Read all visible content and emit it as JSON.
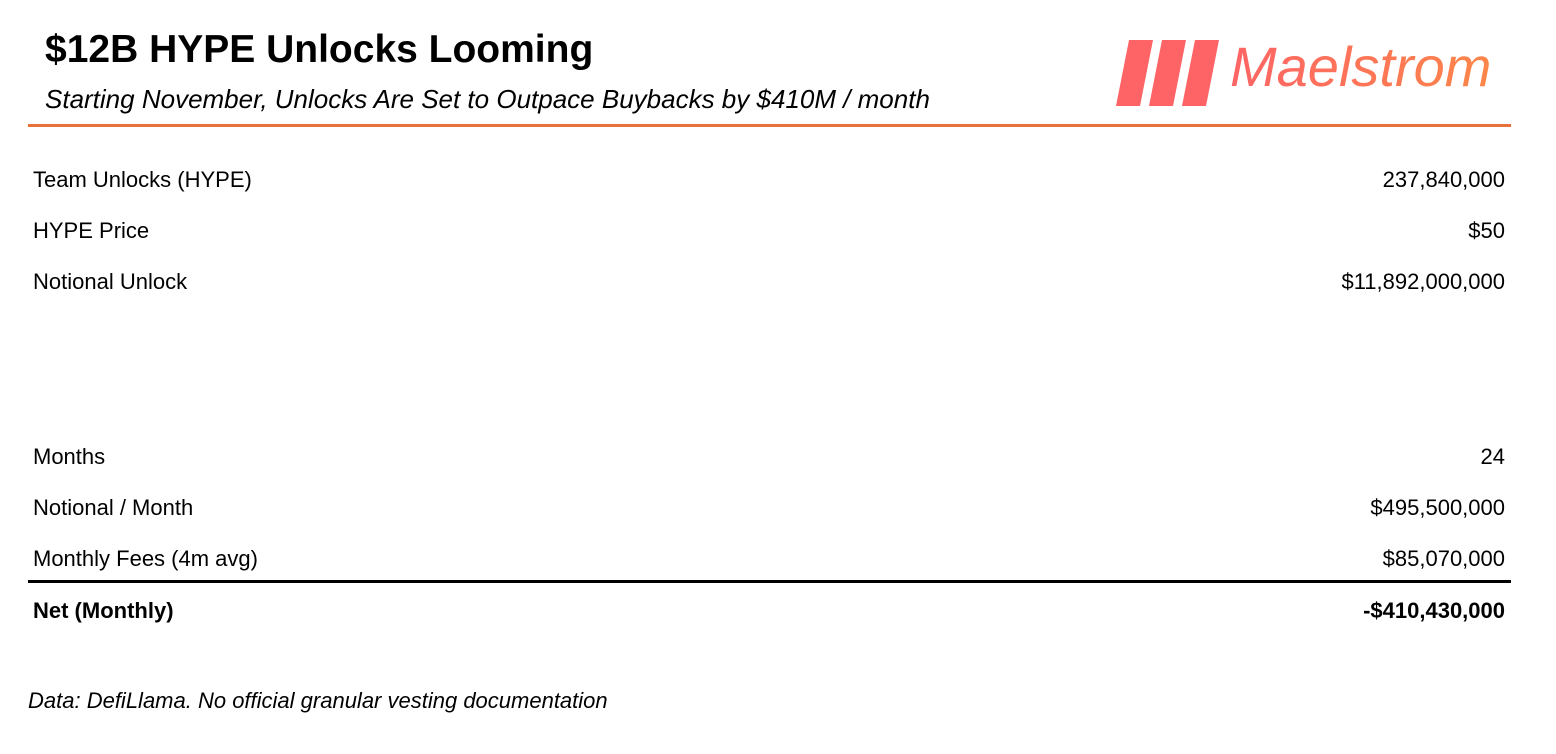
{
  "header": {
    "title": "$12B HYPE Unlocks Looming",
    "subtitle": "Starting November, Unlocks Are Set to Outpace Buybacks by $410M / month",
    "accent_color": "#e8703a"
  },
  "logo": {
    "text": "Maelstrom",
    "colors": [
      "#fe6466",
      "#fd8649"
    ]
  },
  "rows": [
    {
      "label": "Team Unlocks (HYPE)",
      "value": "237,840,000"
    },
    {
      "label": "HYPE Price",
      "value": "$50"
    },
    {
      "label": "Notional Unlock",
      "value": "$11,892,000,000"
    },
    {
      "label": "Months",
      "value": "24"
    },
    {
      "label": "Notional / Month",
      "value": "$495,500,000"
    },
    {
      "label": "Monthly Fees (4m avg)",
      "value": "$85,070,000"
    }
  ],
  "total": {
    "label": "Net (Monthly)",
    "value": "-$410,430,000"
  },
  "footer": "Data: DefiLlama. No official granular vesting documentation"
}
